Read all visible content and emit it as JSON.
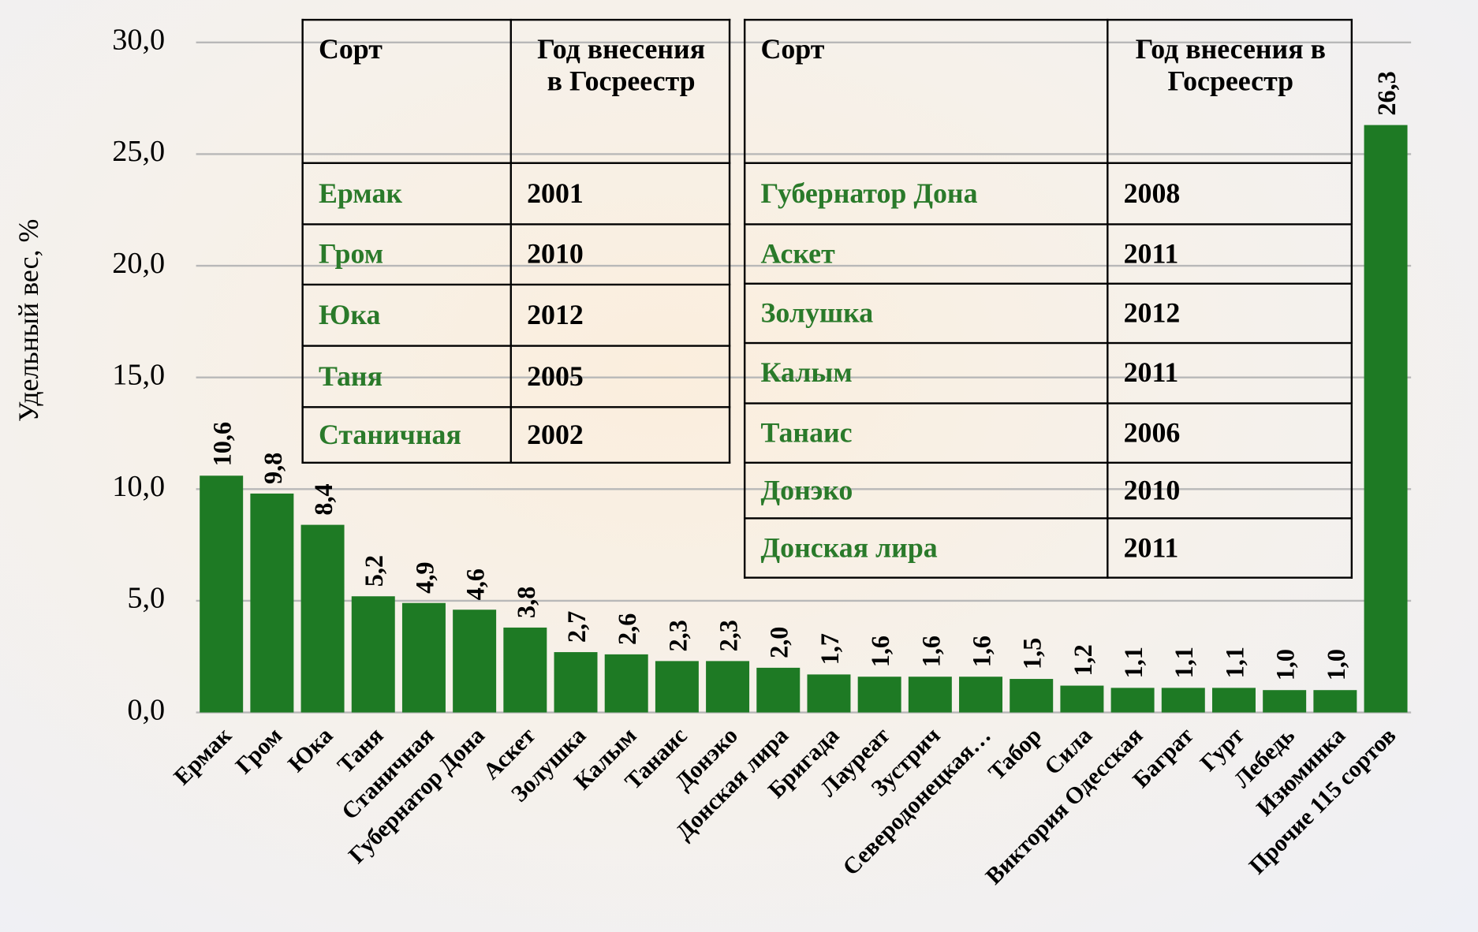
{
  "chart_data": {
    "type": "bar",
    "y_label": "Удельный вес, %",
    "categories": [
      "Ермак",
      "Гром",
      "Юка",
      "Таня",
      "Станичная",
      "Губернатор Дона",
      "Аскет",
      "Золушка",
      "Калым",
      "Танаис",
      "Донэко",
      "Донская лира",
      "Бригада",
      "Лауреат",
      "Зустрич",
      "Северодонецкая…",
      "Табор",
      "Сила",
      "Виктория Одесская",
      "Баграт",
      "Гурт",
      "Лебедь",
      "Изюминка",
      "Прочие 115 сортов"
    ],
    "values": [
      10.6,
      9.8,
      8.4,
      5.2,
      4.9,
      4.6,
      3.8,
      2.7,
      2.6,
      2.3,
      2.3,
      2.0,
      1.7,
      1.6,
      1.6,
      1.6,
      1.5,
      1.2,
      1.1,
      1.1,
      1.1,
      1.0,
      1.0,
      26.3
    ],
    "value_labels": [
      "10,6",
      "9,8",
      "8,4",
      "5,2",
      "4,9",
      "4,6",
      "3,8",
      "2,7",
      "2,6",
      "2,3",
      "2,3",
      "2,0",
      "1,7",
      "1,6",
      "1,6",
      "1,6",
      "1,5",
      "1,2",
      "1,1",
      "1,1",
      "1,1",
      "1,0",
      "1,0",
      "26,3"
    ],
    "color": "#1e7a24",
    "ylim": [
      0,
      30
    ],
    "yticks": [
      {
        "value": 0,
        "label": "0,0"
      },
      {
        "value": 5,
        "label": "5,0"
      },
      {
        "value": 10,
        "label": "10,0"
      },
      {
        "value": 15,
        "label": "15,0"
      },
      {
        "value": 20,
        "label": "20,0"
      },
      {
        "value": 25,
        "label": "25,0"
      },
      {
        "value": 30,
        "label": "30,0"
      }
    ],
    "grid": true
  },
  "tables": [
    {
      "header": [
        "Сорт",
        "Год внесения в Госреестр"
      ],
      "rows": [
        [
          "Ермак",
          2001
        ],
        [
          "Гром",
          2010
        ],
        [
          "Юка",
          2012
        ],
        [
          "Таня",
          2005
        ],
        [
          "Станичная",
          2002
        ]
      ]
    },
    {
      "header": [
        "Сорт",
        "Год внесения в Госреестр"
      ],
      "rows": [
        [
          "Губернатор Дона",
          2008
        ],
        [
          "Аскет",
          2011
        ],
        [
          "Золушка",
          2012
        ],
        [
          "Калым",
          2011
        ],
        [
          "Танаис",
          2006
        ],
        [
          "Донэко",
          2010
        ],
        [
          "Донская лира",
          2011
        ]
      ]
    }
  ]
}
